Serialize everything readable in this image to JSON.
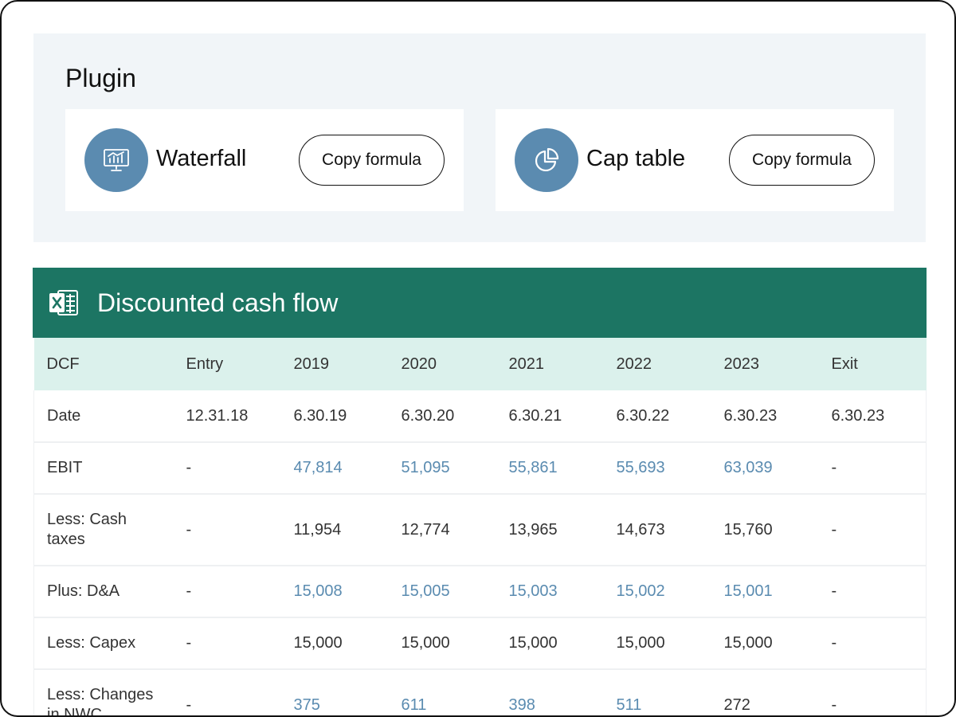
{
  "plugin": {
    "title": "Plugin",
    "cards": [
      {
        "name": "Waterfall",
        "icon": "presentation-chart-icon",
        "button": "Copy formula"
      },
      {
        "name": "Cap table",
        "icon": "pie-chart-icon",
        "button": "Copy formula"
      }
    ]
  },
  "dcf": {
    "title": "Discounted cash flow",
    "icon": "excel-icon",
    "colors": {
      "header": "#1c7563",
      "subheader": "#dbf1ec",
      "link": "#5a8bb0"
    },
    "columns": [
      "DCF",
      "Entry",
      "2019",
      "2020",
      "2021",
      "2022",
      "2023",
      "Exit"
    ],
    "rows": [
      {
        "label": "Date",
        "cells": [
          "12.31.18",
          "6.30.19",
          "6.30.20",
          "6.30.21",
          "6.30.22",
          "6.30.23",
          "6.30.23"
        ]
      },
      {
        "label": "EBIT",
        "cells": [
          "-",
          "47,814",
          "51,095",
          "55,861",
          "55,693",
          "63,039",
          "-"
        ]
      },
      {
        "label": "Less: Cash taxes",
        "cells": [
          "-",
          "11,954",
          "12,774",
          "13,965",
          "14,673",
          "15,760",
          "-"
        ]
      },
      {
        "label": "Plus: D&A",
        "cells": [
          "-",
          "15,008",
          "15,005",
          "15,003",
          "15,002",
          "15,001",
          "-"
        ]
      },
      {
        "label": "Less: Capex",
        "cells": [
          "-",
          "15,000",
          "15,000",
          "15,000",
          "15,000",
          "15,000",
          "-"
        ]
      },
      {
        "label": "Less: Changes in NWC",
        "cells": [
          "-",
          "375",
          "611",
          "398",
          "511",
          "272",
          "-"
        ]
      }
    ]
  }
}
